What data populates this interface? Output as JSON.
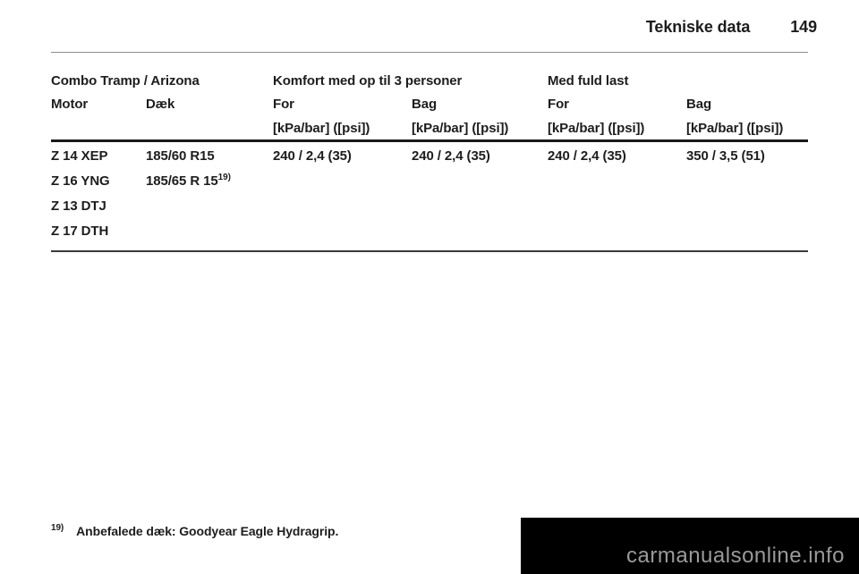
{
  "page": {
    "title": "Tekniske data",
    "page_number": "149",
    "footnote_marker": "19)",
    "footnote_text": "Anbefalede dæk: Goodyear Eagle Hydragrip.",
    "watermark": "carmanualsonline.info"
  },
  "colors": {
    "text": "#1d1d1d",
    "header_rule": "#8e8e8e",
    "table_rule_thick": "#1a1a1a",
    "table_rule_bottom": "#3a3a3a",
    "watermark_bg": "#000000",
    "watermark_text": "#9a9a9a"
  },
  "table": {
    "group_headers": {
      "model": "Combo Tramp / Arizona",
      "comfort": "Komfort med op til 3 personer",
      "full_load": "Med fuld last"
    },
    "columns": {
      "motor": "Motor",
      "tire": "Dæk",
      "comfort_front": "For",
      "comfort_rear": "Bag",
      "full_front": "For",
      "full_rear": "Bag"
    },
    "unit": "[kPa/bar] ([psi])",
    "rows": [
      {
        "motor": "Z 14 XEP",
        "tire": "185/60 R15",
        "tire_sup": "",
        "comfort_front": "240 / 2,4 (35)",
        "comfort_rear": "240 / 2,4 (35)",
        "full_front": "240 / 2,4 (35)",
        "full_rear": "350 / 3,5 (51)"
      },
      {
        "motor": "Z 16 YNG",
        "tire": "185/65 R 15",
        "tire_sup": "19)",
        "comfort_front": "",
        "comfort_rear": "",
        "full_front": "",
        "full_rear": ""
      },
      {
        "motor": "Z 13 DTJ",
        "tire": "",
        "tire_sup": "",
        "comfort_front": "",
        "comfort_rear": "",
        "full_front": "",
        "full_rear": ""
      },
      {
        "motor": "Z 17 DTH",
        "tire": "",
        "tire_sup": "",
        "comfort_front": "",
        "comfort_rear": "",
        "full_front": "",
        "full_rear": ""
      }
    ]
  }
}
